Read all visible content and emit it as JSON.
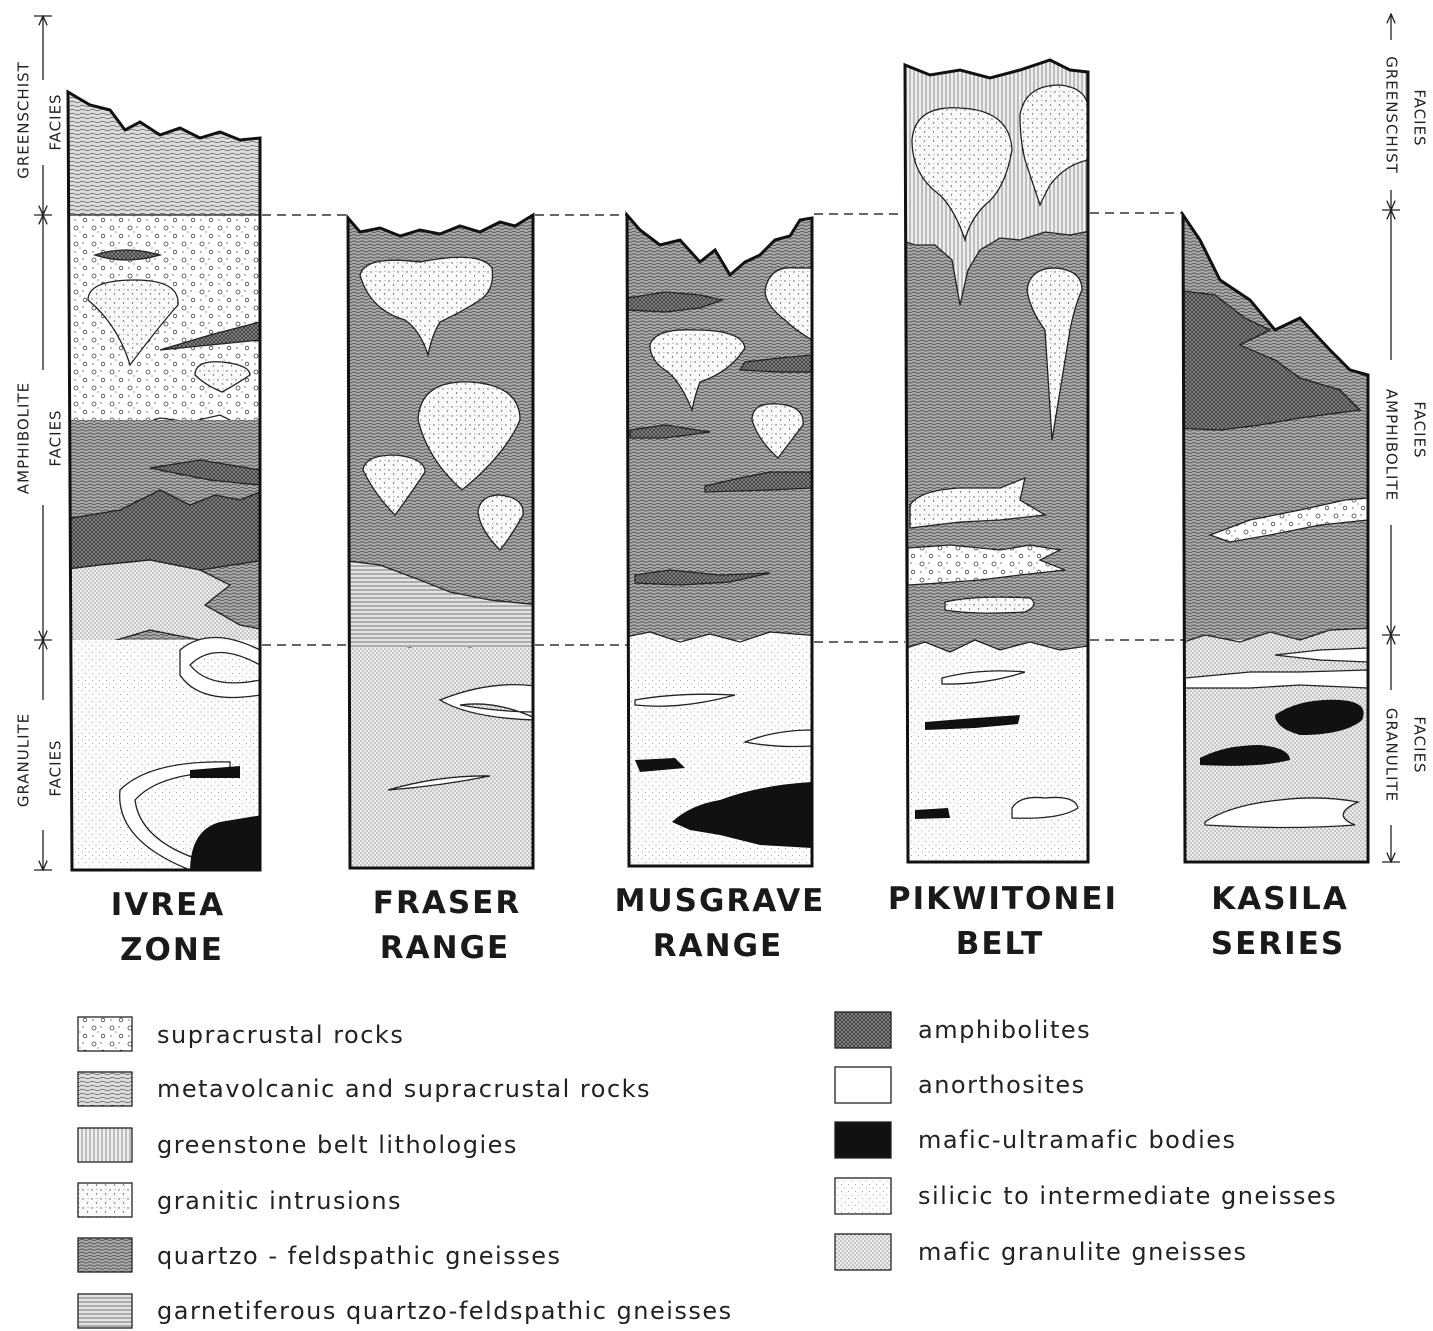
{
  "left_scale": [
    {
      "lines": [
        "GREENSCHIST",
        "FACIES"
      ]
    },
    {
      "lines": [
        "AMPHIBOLITE",
        "FACIES"
      ]
    },
    {
      "lines": [
        "GRANULITE",
        "FACIES"
      ]
    }
  ],
  "right_scale": [
    {
      "lines": [
        "GREENSCHIST",
        "FACIES"
      ]
    },
    {
      "lines": [
        "AMPHIBOLITE",
        "FACIES"
      ]
    },
    {
      "lines": [
        "GRANULITE",
        "FACIES"
      ]
    }
  ],
  "columns": [
    {
      "lines": [
        "IVREA",
        "ZONE"
      ]
    },
    {
      "lines": [
        "FRASER",
        "RANGE"
      ]
    },
    {
      "lines": [
        "MUSGRAVE",
        "RANGE"
      ]
    },
    {
      "lines": [
        "PIKWITONEI",
        "BELT"
      ]
    },
    {
      "lines": [
        "KASILA",
        "SERIES"
      ]
    }
  ],
  "legend": {
    "left": [
      "supracrustal rocks",
      "metavolcanic and supracrustal rocks",
      "greenstone belt lithologies",
      "granitic intrusions",
      "quartzo - feldspathic gneisses",
      "garnetiferous quartzo-feldspathic gneisses"
    ],
    "right": [
      "amphibolites",
      "anorthosites",
      "mafic-ultramafic bodies",
      "silicic to intermediate gneisses",
      "mafic granulite gneisses"
    ]
  }
}
